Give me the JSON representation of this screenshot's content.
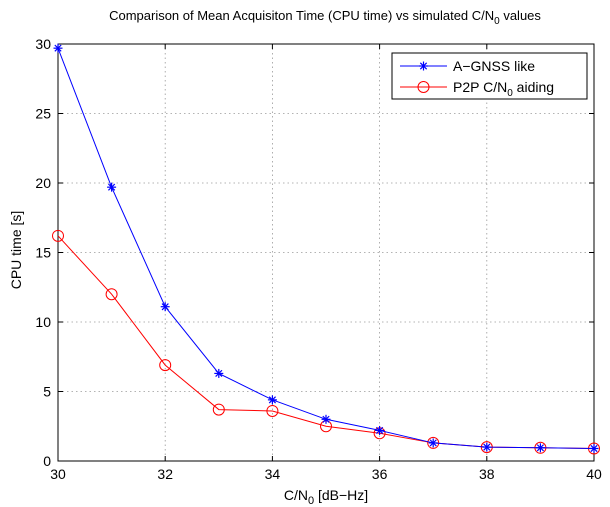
{
  "chart_data": {
    "type": "line",
    "title": {
      "prefix": "Comparison of Mean Acquisiton Time (CPU time) vs simulated C/N",
      "sub": "0",
      "suffix": " values"
    },
    "xlabel": {
      "prefix": "C/N",
      "sub": "0",
      "suffix": " [dB−Hz]"
    },
    "ylabel": "CPU time [s]",
    "xlim": [
      30,
      40
    ],
    "ylim": [
      0,
      30
    ],
    "xticks": [
      30,
      32,
      34,
      36,
      38,
      40
    ],
    "yticks": [
      0,
      5,
      10,
      15,
      20,
      25,
      30
    ],
    "grid": true,
    "legend_position": "top-right",
    "x": [
      30,
      31,
      32,
      33,
      34,
      35,
      36,
      37,
      38,
      39,
      40
    ],
    "series": [
      {
        "legend": {
          "prefix": "A−GNSS like",
          "sub": "",
          "suffix": ""
        },
        "color": "#0000ff",
        "marker": "asterisk",
        "values": [
          29.7,
          19.7,
          11.1,
          6.3,
          4.4,
          3.0,
          2.2,
          1.3,
          1.0,
          0.95,
          0.9
        ]
      },
      {
        "legend": {
          "prefix": "P2P C/N",
          "sub": "0",
          "suffix": " aiding"
        },
        "color": "#ff0000",
        "marker": "circle",
        "values": [
          16.2,
          12.0,
          6.9,
          3.7,
          3.6,
          2.5,
          2.0,
          1.3,
          1.0,
          0.95,
          0.9
        ]
      }
    ]
  }
}
